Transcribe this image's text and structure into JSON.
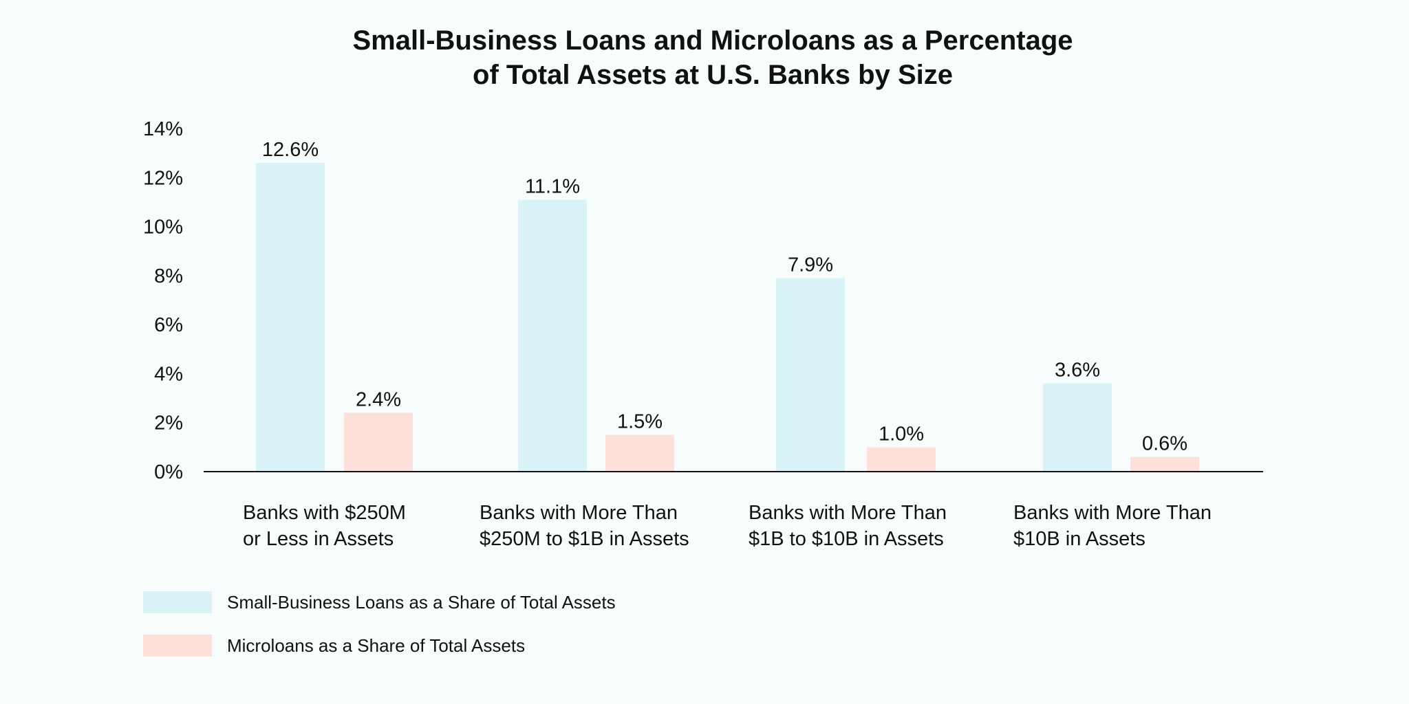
{
  "chart_data": {
    "type": "bar",
    "title": [
      "Small-Business Loans and Microloans as a Percentage",
      "of Total Assets at U.S. Banks by Size"
    ],
    "categories": [
      [
        "Banks with $250M",
        "or Less in Assets"
      ],
      [
        "Banks with More Than",
        "$250M to $1B in Assets"
      ],
      [
        "Banks with More Than",
        "$1B to $10B in Assets"
      ],
      [
        "Banks with More Than",
        "$10B in Assets"
      ]
    ],
    "series": [
      {
        "name": "Small-Business Loans as a Share of Total Assets",
        "color": "#d9f3f8",
        "values": [
          12.6,
          11.1,
          7.9,
          3.6
        ],
        "labels": [
          "12.6%",
          "11.1%",
          "7.9%",
          "3.6%"
        ]
      },
      {
        "name": "Microloans as a Share of Total Assets",
        "color": "#fde0d9",
        "values": [
          2.4,
          1.5,
          1.0,
          0.6
        ],
        "labels": [
          "2.4%",
          "1.5%",
          "1.0%",
          "0.6%"
        ]
      }
    ],
    "yticks": [
      "0%",
      "2%",
      "4%",
      "6%",
      "8%",
      "10%",
      "12%",
      "14%"
    ],
    "ylim": [
      0,
      14
    ],
    "xlabel": "",
    "ylabel": "",
    "grid": false,
    "legend_position": "bottom-left"
  }
}
